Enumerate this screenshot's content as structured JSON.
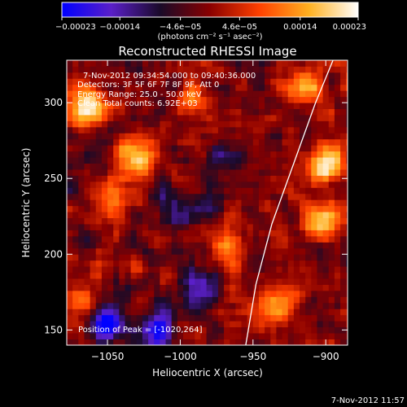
{
  "chart_data": {
    "type": "heatmap",
    "title": "Reconstructed RHESSI Image",
    "xlabel": "Heliocentric X (arcsec)",
    "ylabel": "Heliocentric Y (arcsec)",
    "xlim": [
      -1078,
      -885
    ],
    "ylim": [
      140,
      328
    ],
    "xticks": [
      -1050,
      -1000,
      -950,
      -900
    ],
    "xtick_labels": [
      "−1050",
      "−1000",
      "−950",
      "−900"
    ],
    "yticks": [
      150,
      200,
      250,
      300
    ],
    "ytick_labels": [
      "150",
      "200",
      "250",
      "300"
    ],
    "colorbar": {
      "min": -0.00023,
      "max": 0.00023,
      "ticks": [
        -0.00023,
        -0.00014,
        -4.6e-05,
        4.6e-05,
        0.00014,
        0.00023
      ],
      "tick_labels": [
        "−0.00023",
        "−0.00014",
        "−4.6e−05",
        "4.6e−05",
        "0.00014",
        "0.00023"
      ],
      "units_label": "(photons cm⁻² s⁻¹ asec⁻²)",
      "colormap": [
        "#0000ff",
        "#5a1fc8",
        "#1a0a28",
        "#8a0000",
        "#ff4000",
        "#ffb020",
        "#ffffff"
      ]
    },
    "annotations": [
      "7-Nov-2012 09:34:54.000 to 09:40:36.000",
      "Detectors: 3F 5F 6F 7F 8F 9F, Att 0",
      "Energy Range: 25.0 - 50.0 keV",
      "Clean   Total counts: 6.92E+03"
    ],
    "peak_label": "Position of Peak = [-1020,264]",
    "hotspots": [
      {
        "x": -1063,
        "y": 298,
        "value": 0.00023
      },
      {
        "x": -1030,
        "y": 265,
        "value": 0.0002
      },
      {
        "x": -1045,
        "y": 238,
        "value": 0.00015
      },
      {
        "x": -900,
        "y": 260,
        "value": 0.00023
      },
      {
        "x": -905,
        "y": 222,
        "value": 0.0002
      },
      {
        "x": -935,
        "y": 168,
        "value": 0.00017
      },
      {
        "x": -965,
        "y": 205,
        "value": 0.00013
      },
      {
        "x": -1070,
        "y": 170,
        "value": 0.00012
      },
      {
        "x": -990,
        "y": 300,
        "value": 0.0001
      },
      {
        "x": -915,
        "y": 310,
        "value": 0.00016
      }
    ],
    "coldspots": [
      {
        "x": -1000,
        "y": 230,
        "value": -0.00012
      },
      {
        "x": -1050,
        "y": 155,
        "value": -0.00023
      },
      {
        "x": -985,
        "y": 180,
        "value": -0.00014
      },
      {
        "x": -970,
        "y": 260,
        "value": -0.0001
      },
      {
        "x": -1015,
        "y": 150,
        "value": -0.00016
      }
    ],
    "limb_curve": [
      {
        "x": -955,
        "y": 140
      },
      {
        "x": -948,
        "y": 180
      },
      {
        "x": -937,
        "y": 220
      },
      {
        "x": -922,
        "y": 260
      },
      {
        "x": -907,
        "y": 300
      },
      {
        "x": -895,
        "y": 328
      }
    ],
    "grid": false
  },
  "footer": {
    "timestamp": "7-Nov-2012 11:57"
  }
}
